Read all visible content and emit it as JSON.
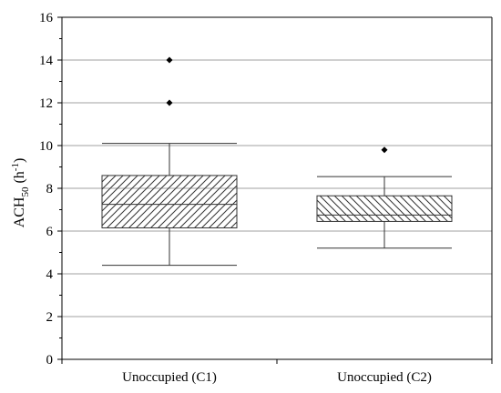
{
  "chart_data": {
    "type": "box",
    "ylabel": {
      "main": "ACH",
      "sub": "50",
      "unit_open": " (h",
      "sup": "-1",
      "unit_close": ")"
    },
    "ylim": [
      0,
      16
    ],
    "yticks": [
      0,
      2,
      4,
      6,
      8,
      10,
      12,
      14,
      16
    ],
    "ytick_labels": [
      "0",
      "2",
      "4",
      "6",
      "8",
      "10",
      "12",
      "14",
      "16"
    ],
    "grid": true,
    "categories": [
      "Unoccupied (C1)",
      "Unoccupied (C2)"
    ],
    "boxes": [
      {
        "category": "Unoccupied (C1)",
        "whisker_low": 4.4,
        "q1": 6.15,
        "median": 7.25,
        "q3": 8.6,
        "whisker_high": 10.1,
        "outliers": [
          12.0,
          14.0
        ],
        "hatch": "forward-diagonal"
      },
      {
        "category": "Unoccupied (C2)",
        "whisker_low": 5.2,
        "q1": 6.45,
        "median": 6.75,
        "q3": 7.65,
        "whisker_high": 8.55,
        "outliers": [
          9.8
        ],
        "hatch": "back-diagonal"
      }
    ],
    "colors": {
      "axis": "#000000",
      "grid": "#a0a0a0",
      "box_line": "#333333",
      "marker": "#000000"
    }
  }
}
